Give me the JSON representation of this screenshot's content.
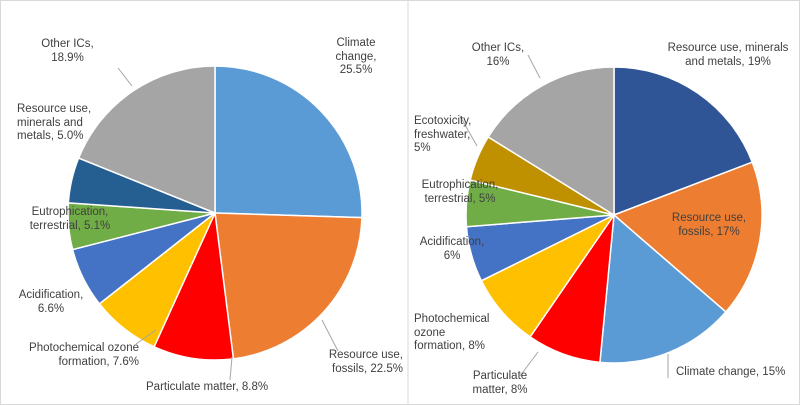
{
  "chart_data": [
    {
      "type": "pie",
      "categories": [
        "Climate change",
        "Resource use, fossils",
        "Particulate matter",
        "Photochemical ozone formation",
        "Acidification",
        "Eutrophication, terrestrial",
        "Resource use, minerals and metals",
        "Other ICs"
      ],
      "values": [
        25.5,
        22.5,
        8.8,
        7.6,
        6.6,
        5.1,
        5.0,
        18.9
      ],
      "value_labels": [
        "25.5%",
        "22.5%",
        "8.8%",
        "7.6%",
        "6.6%",
        "5.1%",
        "5.0%",
        "18.9%"
      ],
      "colors": [
        "#5b9bd5",
        "#ed7d31",
        "#ff0000",
        "#ffc000",
        "#4472c4",
        "#70ad47",
        "#255e91",
        "#a5a5a5"
      ]
    },
    {
      "type": "pie",
      "categories": [
        "Resource use, minerals and metals",
        "Resource use, fossils",
        "Climate change",
        "Particulate matter",
        "Photochemical ozone formation",
        "Acidification",
        "Eutrophication, terrestrial",
        "Ecotoxicity, freshwater",
        "Other ICs"
      ],
      "values": [
        19,
        17,
        15,
        8,
        8,
        6,
        5,
        5,
        16
      ],
      "value_labels": [
        "19%",
        "17%",
        "15%",
        "8%",
        "8%",
        "6%",
        "5%",
        "5%",
        "16%"
      ],
      "colors": [
        "#2f5597",
        "#ed7d31",
        "#5b9bd5",
        "#ff0000",
        "#ffc000",
        "#4472c4",
        "#70ad47",
        "#bf9000",
        "#a5a5a5"
      ]
    }
  ]
}
